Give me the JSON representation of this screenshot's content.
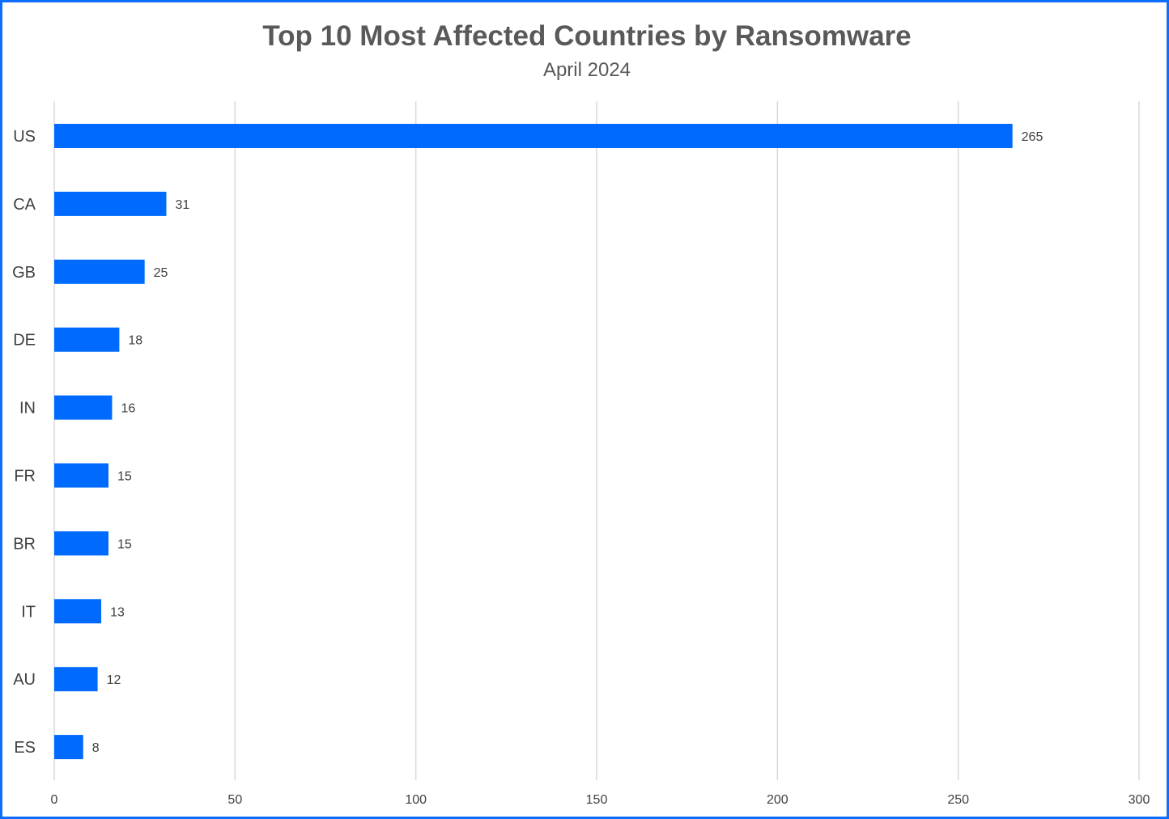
{
  "colors": {
    "bar": "#006AFF",
    "grid": "#D9D9D9",
    "border": "#0D6EFD",
    "text": "#595959"
  },
  "chart_data": {
    "type": "bar",
    "orientation": "horizontal",
    "title": "Top 10 Most Affected Countries by Ransomware",
    "subtitle": "April 2024",
    "categories": [
      "US",
      "CA",
      "GB",
      "DE",
      "IN",
      "FR",
      "BR",
      "IT",
      "AU",
      "ES"
    ],
    "values": [
      265,
      31,
      25,
      18,
      16,
      15,
      15,
      13,
      12,
      8
    ],
    "xlim": [
      0,
      300
    ],
    "xticks": [
      0,
      50,
      100,
      150,
      200,
      250,
      300
    ],
    "grid": true,
    "data_labels": true,
    "legend": "none"
  }
}
